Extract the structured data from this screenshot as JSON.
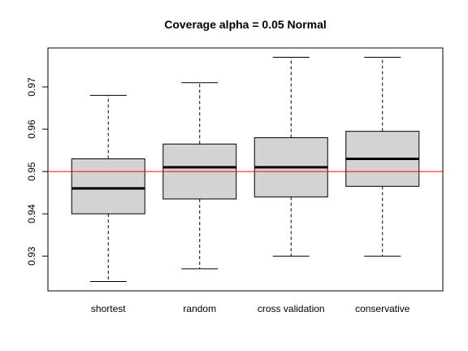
{
  "chart_data": {
    "type": "boxplot",
    "title": "Coverage alpha = 0.05 Normal",
    "xlabel": "",
    "ylabel": "",
    "categories": [
      "shortest",
      "random",
      "cross validation",
      "conservative"
    ],
    "series": [
      {
        "category": "shortest",
        "min": 0.924,
        "q1": 0.94,
        "median": 0.946,
        "q3": 0.953,
        "max": 0.968
      },
      {
        "category": "random",
        "min": 0.927,
        "q1": 0.9435,
        "median": 0.951,
        "q3": 0.9565,
        "max": 0.971
      },
      {
        "category": "cross validation",
        "min": 0.93,
        "q1": 0.944,
        "median": 0.951,
        "q3": 0.958,
        "max": 0.977
      },
      {
        "category": "conservative",
        "min": 0.93,
        "q1": 0.9465,
        "median": 0.953,
        "q3": 0.9595,
        "max": 0.977
      }
    ],
    "reference_line": {
      "y": 0.95,
      "color": "#ff0000"
    },
    "y_ticks": [
      0.93,
      0.94,
      0.95,
      0.96,
      0.97
    ],
    "y_tick_labels": [
      "0.93",
      "0.94",
      "0.95",
      "0.96",
      "0.97"
    ],
    "ylim": [
      0.92178,
      0.97922
    ],
    "box_fill": "#d3d3d3",
    "grid": false,
    "legend": "none"
  }
}
